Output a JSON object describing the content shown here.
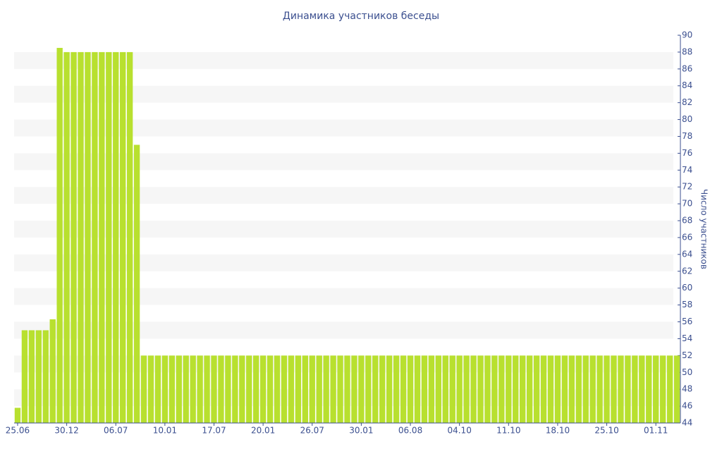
{
  "chart_data": {
    "type": "bar",
    "title": "Динамика участников беседы",
    "y_axis_label": "Число участников",
    "categories": [
      "25.06",
      null,
      null,
      null,
      null,
      null,
      null,
      "30.12",
      null,
      null,
      null,
      null,
      null,
      null,
      "06.07",
      null,
      null,
      null,
      null,
      null,
      null,
      "10.01",
      null,
      null,
      null,
      null,
      null,
      null,
      "17.07",
      null,
      null,
      null,
      null,
      null,
      null,
      "20.01",
      null,
      null,
      null,
      null,
      null,
      null,
      "26.07",
      null,
      null,
      null,
      null,
      null,
      null,
      "30.01",
      null,
      null,
      null,
      null,
      null,
      null,
      "06.08",
      null,
      null,
      null,
      null,
      null,
      null,
      "04.10",
      null,
      null,
      null,
      null,
      null,
      null,
      "11.10",
      null,
      null,
      null,
      null,
      null,
      null,
      "18.10",
      null,
      null,
      null,
      null,
      null,
      null,
      "25.10",
      null,
      null,
      null,
      null,
      null,
      null,
      "01.11",
      null,
      null,
      null
    ],
    "values": [
      45.8,
      55,
      55,
      55,
      55,
      56.3,
      88.5,
      88,
      88,
      88,
      88,
      88,
      88,
      88,
      88,
      88,
      88,
      77,
      52,
      52,
      52,
      52,
      52,
      52,
      52,
      52,
      52,
      52,
      52,
      52,
      52,
      52,
      52,
      52,
      52,
      52,
      52,
      52,
      52,
      52,
      52,
      52,
      52,
      52,
      52,
      52,
      52,
      52,
      52,
      52,
      52,
      52,
      52,
      52,
      52,
      52,
      52,
      52,
      52,
      52,
      52,
      52,
      52,
      52,
      52,
      52,
      52,
      52,
      52,
      52,
      52,
      52,
      52,
      52,
      52,
      52,
      52,
      52,
      52,
      52,
      52,
      52,
      52,
      52,
      52,
      52,
      52,
      52,
      52,
      52,
      52,
      52,
      52,
      52,
      52
    ],
    "color": "#b8e02f",
    "ylim": [
      44,
      90
    ],
    "yticks": [
      44,
      46,
      48,
      50,
      52,
      54,
      56,
      58,
      60,
      62,
      64,
      66,
      68,
      70,
      72,
      74,
      76,
      78,
      80,
      82,
      84,
      86,
      88,
      90
    ],
    "y_axis_side": "right",
    "grid": true
  }
}
